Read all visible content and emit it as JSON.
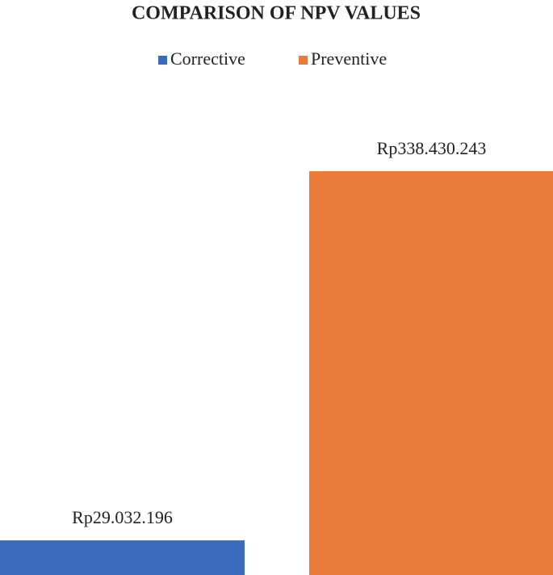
{
  "chart_data": {
    "type": "bar",
    "title": "COMPARISON OF NPV VALUES",
    "series": [
      {
        "name": "Corrective",
        "color": "#3c6bbd",
        "values": [
          29032196
        ],
        "value_labels": [
          "Rp29.032.196"
        ]
      },
      {
        "name": "Preventive",
        "color": "#e97c3a",
        "values": [
          338430243
        ],
        "value_labels": [
          "Rp338.430.243"
        ]
      }
    ],
    "legend": "top"
  }
}
